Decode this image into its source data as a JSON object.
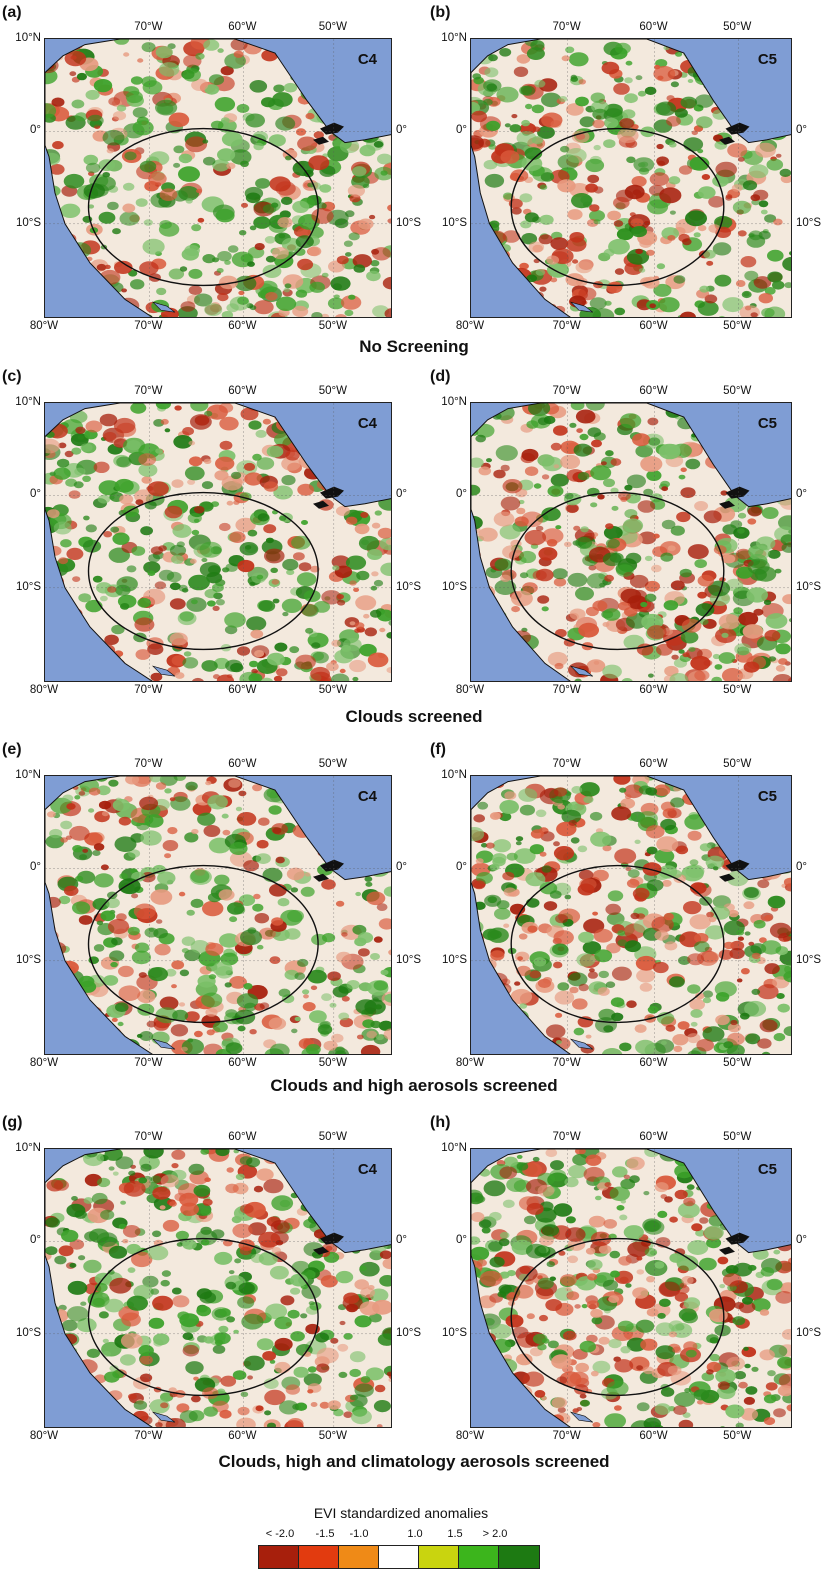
{
  "panels": [
    {
      "letter": "(a)",
      "version": "C4"
    },
    {
      "letter": "(b)",
      "version": "C5"
    },
    {
      "letter": "(c)",
      "version": "C4"
    },
    {
      "letter": "(d)",
      "version": "C5"
    },
    {
      "letter": "(e)",
      "version": "C4"
    },
    {
      "letter": "(f)",
      "version": "C5"
    },
    {
      "letter": "(g)",
      "version": "C4"
    },
    {
      "letter": "(h)",
      "version": "C5"
    }
  ],
  "axes": {
    "top_ticks": [
      "70°W",
      "60°W",
      "50°W"
    ],
    "bottom_ticks": [
      "80°W",
      "70°W",
      "60°W",
      "50°W"
    ],
    "left_ticks": [
      "10°N",
      "0°",
      "10°S"
    ],
    "right_ticks": [
      "0°",
      "10°S"
    ]
  },
  "row_captions": [
    "No Screening",
    "Clouds screened",
    "Clouds and high aerosols screened",
    "Clouds, high and climatology aerosols screened"
  ],
  "legend": {
    "title": "EVI standardized anomalies",
    "labels": [
      "< -2.0",
      "-1.5",
      "-1.0",
      "1.0",
      "1.5",
      "> 2.0"
    ],
    "colors": [
      "#a71f0c",
      "#e23b0f",
      "#ef8a17",
      "#ffffff",
      "#c9d40f",
      "#3cb51c",
      "#1d7a12"
    ]
  },
  "map_colors": {
    "ocean": "#7f9dd4",
    "land": "#f3e9dd",
    "river": "#9fa8c4",
    "andes_gray": "#8a8a8a"
  }
}
